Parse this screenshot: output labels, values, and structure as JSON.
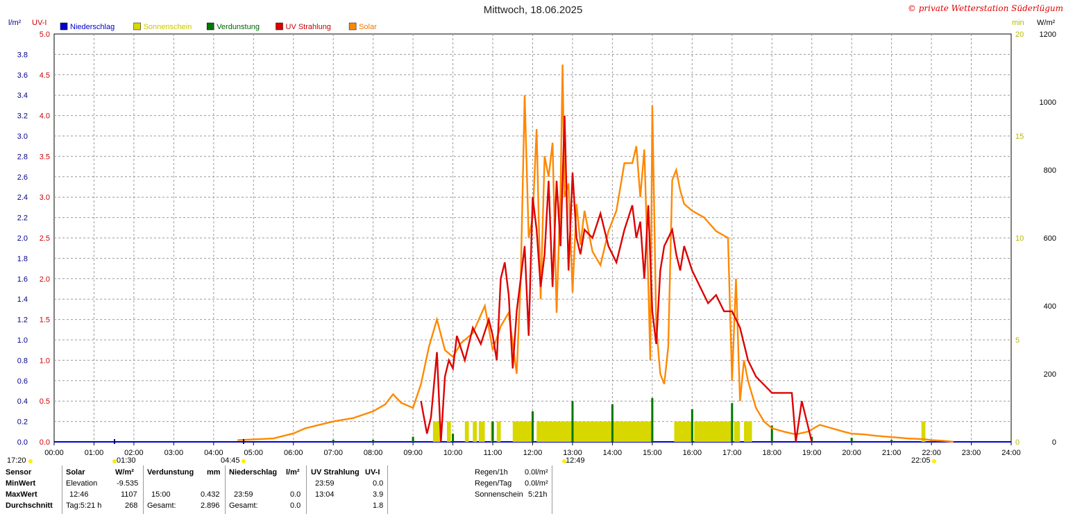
{
  "title": "Mittwoch, 18.06.2025",
  "copyright": "© private Wetterstation Süderlügum",
  "axis_labels": {
    "left_outer": "l/m²",
    "left_inner": "UV-I",
    "right_inner": "min",
    "right_outer": "W/m²"
  },
  "legend": [
    {
      "name": "Niederschlag",
      "color": "#0000cc",
      "text_color": "#0000cc"
    },
    {
      "name": "Sonnenschein",
      "color": "#d8d800",
      "text_color": "#c8c800"
    },
    {
      "name": "Verdunstung",
      "color": "#007700",
      "text_color": "#006600"
    },
    {
      "name": "UV Strahlung",
      "color": "#dd0000",
      "text_color": "#cc0000"
    },
    {
      "name": "Solar",
      "color": "#ff8800",
      "text_color": "#ee7700"
    }
  ],
  "chart_data": {
    "type": "line",
    "x_ticks": [
      "00:00",
      "01:00",
      "02:00",
      "03:00",
      "04:00",
      "05:00",
      "06:00",
      "07:00",
      "08:00",
      "09:00",
      "10:00",
      "11:00",
      "12:00",
      "13:00",
      "14:00",
      "15:00",
      "16:00",
      "17:00",
      "18:00",
      "19:00",
      "20:00",
      "21:00",
      "22:00",
      "23:00",
      "24:00"
    ],
    "xlim": [
      0,
      24
    ],
    "axes": {
      "precip_lm2": {
        "ticks": [
          "0.0",
          "0.2",
          "0.4",
          "0.6",
          "0.8",
          "1.0",
          "1.2",
          "1.4",
          "1.6",
          "1.8",
          "2.0",
          "2.2",
          "2.4",
          "2.6",
          "2.8",
          "3.0",
          "3.2",
          "3.4",
          "3.6",
          "3.8"
        ],
        "range": [
          0,
          4.0
        ],
        "color": "#000088"
      },
      "uv_index": {
        "ticks": [
          "0.0",
          "0.5",
          "1.0",
          "1.5",
          "2.0",
          "2.5",
          "3.0",
          "3.5",
          "4.0",
          "4.5",
          "5.0"
        ],
        "range": [
          0,
          5.0
        ],
        "color": "#cc0000"
      },
      "sunshine_min": {
        "ticks": [
          "0",
          "5",
          "10",
          "15",
          "20"
        ],
        "range": [
          0,
          20
        ],
        "color": "#b8b800"
      },
      "solar_wm2": {
        "ticks": [
          "0",
          "200",
          "400",
          "600",
          "800",
          "1000",
          "1200"
        ],
        "range": [
          0,
          1200
        ],
        "color": "#000000"
      }
    },
    "series": [
      {
        "name": "Solar",
        "unit": "W/m²",
        "color": "#ff8800",
        "x": [
          4.6,
          5.5,
          6.0,
          6.3,
          7.0,
          7.5,
          8.0,
          8.3,
          8.5,
          8.7,
          9.0,
          9.2,
          9.4,
          9.6,
          9.8,
          10.0,
          10.2,
          10.5,
          10.8,
          11.0,
          11.2,
          11.4,
          11.6,
          11.7,
          11.8,
          11.9,
          12.0,
          12.1,
          12.2,
          12.3,
          12.4,
          12.5,
          12.6,
          12.7,
          12.75,
          12.8,
          12.9,
          13.0,
          13.1,
          13.2,
          13.3,
          13.5,
          13.7,
          13.9,
          14.1,
          14.3,
          14.5,
          14.6,
          14.7,
          14.8,
          14.9,
          14.95,
          15.0,
          15.1,
          15.2,
          15.3,
          15.4,
          15.5,
          15.6,
          15.7,
          15.8,
          16.0,
          16.3,
          16.6,
          16.9,
          17.0,
          17.1,
          17.2,
          17.3,
          17.4,
          17.5,
          17.6,
          17.8,
          18.0,
          18.3,
          18.6,
          18.9,
          19.2,
          19.5,
          19.8,
          20.0,
          20.3,
          20.6,
          21.0,
          21.4,
          21.8,
          22.0,
          22.3,
          22.55
        ],
        "y": [
          5,
          10,
          25,
          40,
          60,
          70,
          90,
          110,
          140,
          115,
          100,
          170,
          280,
          360,
          270,
          250,
          290,
          320,
          400,
          270,
          340,
          380,
          200,
          480,
          1020,
          600,
          660,
          920,
          420,
          840,
          780,
          880,
          380,
          740,
          1110,
          720,
          760,
          440,
          700,
          580,
          680,
          560,
          520,
          620,
          680,
          820,
          820,
          870,
          720,
          860,
          470,
          240,
          990,
          340,
          200,
          170,
          280,
          770,
          800,
          740,
          700,
          680,
          660,
          620,
          600,
          180,
          480,
          120,
          240,
          180,
          140,
          100,
          60,
          40,
          30,
          22,
          30,
          50,
          40,
          30,
          24,
          22,
          18,
          14,
          10,
          8,
          5,
          3,
          0
        ]
      },
      {
        "name": "UV Strahlung",
        "unit": "UV-I",
        "color": "#dd0000",
        "x": [
          9.2,
          9.35,
          9.45,
          9.6,
          9.7,
          9.8,
          9.9,
          10.0,
          10.1,
          10.3,
          10.5,
          10.7,
          10.9,
          11.0,
          11.1,
          11.2,
          11.3,
          11.4,
          11.5,
          11.6,
          11.7,
          11.8,
          11.9,
          12.0,
          12.1,
          12.2,
          12.3,
          12.4,
          12.5,
          12.6,
          12.7,
          12.8,
          12.9,
          13.0,
          13.1,
          13.2,
          13.3,
          13.5,
          13.7,
          13.9,
          14.1,
          14.3,
          14.5,
          14.6,
          14.7,
          14.8,
          14.9,
          15.0,
          15.1,
          15.2,
          15.3,
          15.4,
          15.5,
          15.6,
          15.7,
          15.8,
          16.0,
          16.2,
          16.4,
          16.6,
          16.8,
          17.0,
          17.2,
          17.4,
          17.6,
          17.8,
          18.0,
          18.3,
          18.5,
          18.6,
          18.75,
          18.9,
          19.0
        ],
        "y": [
          0.5,
          0.1,
          0.3,
          1.1,
          0,
          0.8,
          1.0,
          0.9,
          1.3,
          1.0,
          1.4,
          1.2,
          1.5,
          1.3,
          1.0,
          2.0,
          2.2,
          1.8,
          0.9,
          1.6,
          2.0,
          2.4,
          1.3,
          3.0,
          2.6,
          1.9,
          2.3,
          3.2,
          1.9,
          3.2,
          2.4,
          4.0,
          2.1,
          3.3,
          2.5,
          2.3,
          2.6,
          2.5,
          2.8,
          2.4,
          2.2,
          2.6,
          2.9,
          2.5,
          2.7,
          2.0,
          2.9,
          1.6,
          1.2,
          2.1,
          2.4,
          2.5,
          2.6,
          2.3,
          2.1,
          2.4,
          2.1,
          1.9,
          1.7,
          1.8,
          1.6,
          1.6,
          1.4,
          1.0,
          0.8,
          0.7,
          0.6,
          0.6,
          0.6,
          0,
          0.5,
          0.2,
          0
        ]
      },
      {
        "name": "Sonnenschein",
        "unit": "min",
        "color": "#d8d800",
        "segments": [
          [
            9.5,
            9.7
          ],
          [
            9.85,
            9.95
          ],
          [
            10.3,
            10.4
          ],
          [
            10.5,
            10.6
          ],
          [
            10.65,
            10.8
          ],
          [
            10.95,
            11.0
          ],
          [
            11.1,
            11.2
          ],
          [
            11.5,
            12.0
          ],
          [
            12.1,
            15.0
          ],
          [
            15.55,
            16.0
          ],
          [
            16.05,
            17.0
          ],
          [
            17.05,
            17.2
          ],
          [
            17.3,
            17.5
          ],
          [
            21.75,
            21.85
          ]
        ],
        "value_min": 1.0
      },
      {
        "name": "Verdunstung",
        "unit": "mm",
        "color": "#007700",
        "x": [
          7.0,
          8.0,
          9.0,
          10.0,
          11.0,
          12.0,
          13.0,
          14.0,
          15.0,
          16.0,
          17.0,
          18.0,
          19.0,
          20.0,
          21.0,
          22.0
        ],
        "y": [
          0.02,
          0.02,
          0.05,
          0.08,
          0.2,
          0.3,
          0.4,
          0.37,
          0.43,
          0.32,
          0.38,
          0.16,
          0.05,
          0.04,
          0.02,
          0.02
        ]
      },
      {
        "name": "Niederschlag",
        "unit": "l/m²",
        "color": "#0000cc",
        "x": [],
        "y": []
      }
    ]
  },
  "markers": {
    "time_labels": [
      {
        "text": "17:20"
      },
      {
        "text": "01:30"
      },
      {
        "text": "04:45"
      },
      {
        "text": "12:49"
      },
      {
        "text": "22:05"
      }
    ]
  },
  "summary": {
    "rows": [
      "Sensor",
      "MinWert",
      "MaxWert",
      "Durchschnitt"
    ],
    "solar": {
      "header": "Solar",
      "unit": "W/m²",
      "min_label": "Elevation",
      "min_value": "-9.535",
      "max_time": "12:46",
      "max_value": "1107",
      "avg_label": "Tag:5:21 h",
      "avg_value": "268"
    },
    "evap": {
      "header": "Verdunstung",
      "unit": "mm",
      "max_time": "15:00",
      "max_value": "0.432",
      "total_label": "Gesamt:",
      "total_value": "2.896"
    },
    "precip": {
      "header": "Niederschlag",
      "unit": "l/m²",
      "max_time": "23:59",
      "max_value": "0.0",
      "total_label": "Gesamt:",
      "total_value": "0.0"
    },
    "uv": {
      "header": "UV Strahlung",
      "unit": "UV-I",
      "min_time": "23:59",
      "min_value": "0.0",
      "max_time": "13:04",
      "max_value": "3.9",
      "avg_value": "1.8"
    },
    "rain": {
      "regen1h_label": "Regen/1h",
      "regen1h_value": "0.0l/m²",
      "regentag_label": "Regen/Tag",
      "regentag_value": "0.0l/m²",
      "sonne_label": "Sonnenschein",
      "sonne_value": "5:21h"
    }
  }
}
